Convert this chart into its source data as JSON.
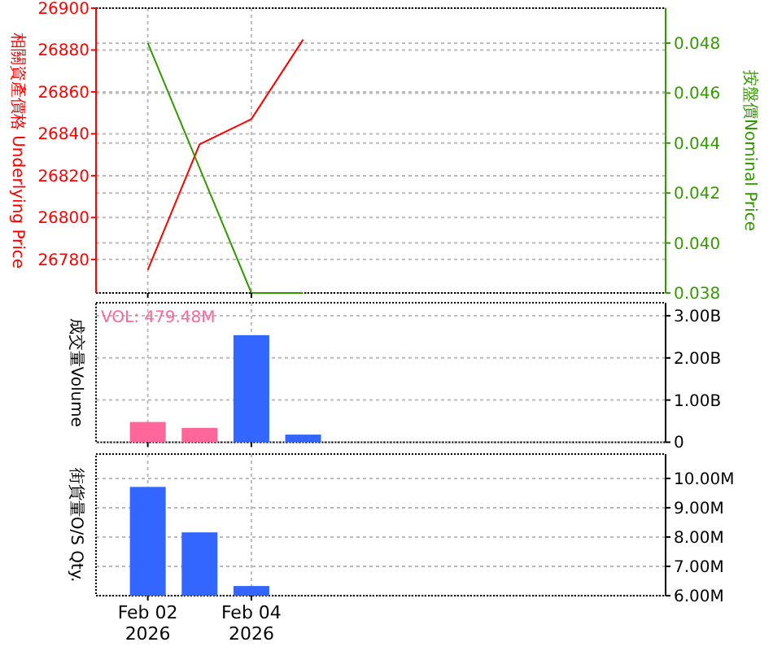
{
  "chart_data": [
    {
      "type": "line",
      "ylabel": "相關資產價格 Underlying Price",
      "y2label": "按盤價Nominal Price",
      "x": [
        "2026-02-02",
        "2026-02-03",
        "2026-02-04",
        "2026-02-05"
      ],
      "xlim": [
        "2026-02-01",
        "2026-02-12"
      ],
      "xticks": [
        {
          "value": "2026-02-02",
          "label": null
        },
        {
          "value": "2026-02-04",
          "label": null
        }
      ],
      "tick_labels": "y",
      "grid": true,
      "series": [
        {
          "color": "#ff0000",
          "values": [
            26775,
            26835,
            26847,
            26885
          ]
        },
        {
          "color": "#339900",
          "axis": "y2",
          "values": [
            0.048,
            0.043,
            0.038,
            0.038
          ]
        }
      ],
      "ylim": [
        26764,
        26900
      ],
      "yticks": [
        26780,
        26800,
        26820,
        26840,
        26860,
        26880,
        26900
      ],
      "y2lim": [
        0.038,
        0.0494
      ],
      "y2ticks": [
        {
          "value": 0.038,
          "label": "0.038"
        },
        {
          "value": 0.04,
          "label": "0.040"
        },
        {
          "value": 0.042,
          "label": "0.042"
        },
        {
          "value": 0.044,
          "label": "0.044"
        },
        {
          "value": 0.046,
          "label": "0.046"
        },
        {
          "value": 0.048,
          "label": "0.048"
        }
      ]
    },
    {
      "type": "bar",
      "ylabel": "成交量Volume",
      "annotations": [
        "VOL: 479.48M"
      ],
      "x": [
        "2026-02-02",
        "2026-02-03",
        "2026-02-04",
        "2026-02-05"
      ],
      "xlim": [
        "2026-02-01",
        "2026-02-12"
      ],
      "xticks": [
        {
          "value": "2026-02-02",
          "label": null
        },
        {
          "value": "2026-02-04",
          "label": null
        }
      ],
      "tick_labels": "y",
      "grid": true,
      "values": [
        0.48,
        0.34,
        2.54,
        0.18
      ],
      "colors": [
        "#ff6699",
        "#ff6699",
        "#3366ff",
        "#3366ff"
      ],
      "ylim": [
        0,
        3.31
      ],
      "yticks": [
        0,
        {
          "value": 1,
          "label": "1.00B"
        },
        {
          "value": 2,
          "label": "2.00B"
        },
        {
          "value": 3,
          "label": "3.00B"
        }
      ]
    },
    {
      "type": "bar",
      "ylabel": "街貨量O/S Qty.",
      "x": [
        "2026-02-02",
        "2026-02-03",
        "2026-02-04"
      ],
      "xlim": [
        "2026-02-01",
        "2026-02-12"
      ],
      "xticks": [
        {
          "value": "2026-02-02",
          "label": "Feb 02\n2026"
        },
        {
          "value": "2026-02-04",
          "label": "Feb 04\n2026"
        }
      ],
      "grid": true,
      "values": [
        9.71,
        8.16,
        6.33
      ],
      "color": "#3366ff",
      "ylim": [
        6,
        10.83
      ],
      "yticks": [
        {
          "value": 6,
          "label": "6.00M"
        },
        {
          "value": 7,
          "label": "7.00M"
        },
        {
          "value": 8,
          "label": "8.00M"
        },
        {
          "value": 9,
          "label": "9.00M"
        },
        {
          "value": 10,
          "label": "10.00M"
        }
      ]
    }
  ]
}
